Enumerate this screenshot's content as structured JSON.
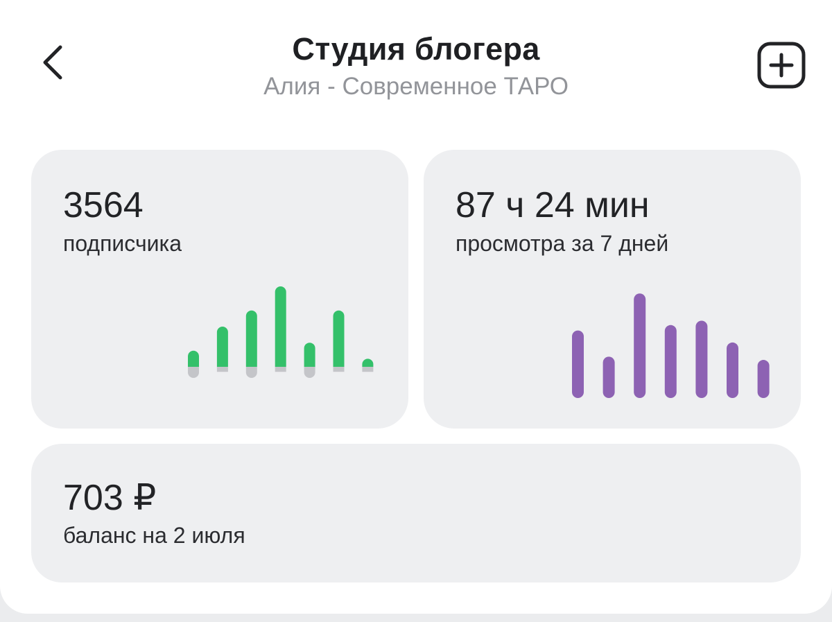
{
  "header": {
    "title": "Студия блогера",
    "subtitle": "Алия - Современное ТАРО",
    "back_icon": "chevron-left-icon",
    "add_icon": "plus-square-icon"
  },
  "subscribers": {
    "value": "3564",
    "caption": "подписчика"
  },
  "views": {
    "value": "87 ч 24 мин",
    "caption": "просмотра за 7 дней"
  },
  "balance": {
    "value": "703 ₽",
    "caption": "баланс на 2 июля"
  },
  "colors": {
    "green": "#34c06a",
    "gray_loss": "#c4c5c9",
    "purple": "#8d62b3",
    "card_bg": "#eeeff1"
  },
  "chart_data": [
    {
      "type": "bar",
      "series": [
        {
          "values": [
            2,
            5,
            7,
            10,
            3,
            7,
            1
          ]
        },
        {
          "values": [
            -1,
            -1,
            -1,
            -1,
            -1,
            -1,
            -1
          ]
        }
      ]
    },
    {
      "type": "bar",
      "series": [
        {
          "values": [
            6.2,
            3.8,
            9.6,
            6.7,
            7.1,
            5.1,
            3.5
          ]
        }
      ]
    }
  ]
}
